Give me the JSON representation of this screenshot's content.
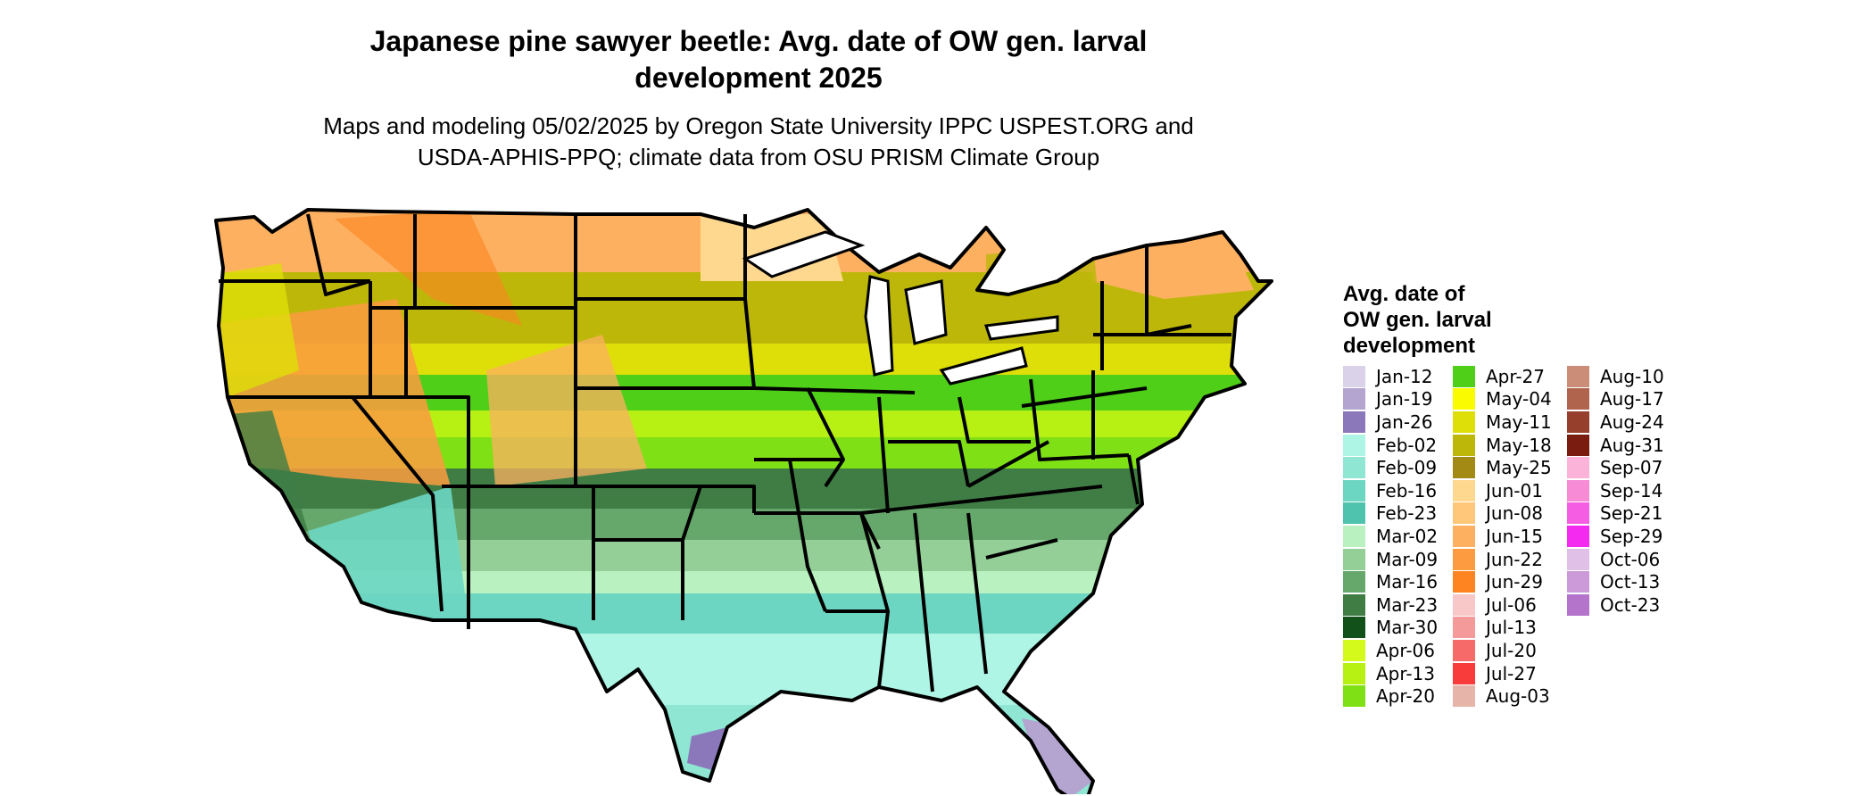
{
  "title": "Japanese pine sawyer beetle: Avg. date of OW gen. larval\ndevelopment 2025",
  "subtitle": "Maps and modeling 05/02/2025 by Oregon State University IPPC USPEST.ORG and\nUSDA-APHIS-PPQ; climate data from OSU PRISM Climate Group",
  "legend": {
    "title": "Avg. date of\nOW gen. larval\ndevelopment",
    "columns": [
      [
        {
          "label": "Jan-12",
          "color": "#d9d2e9"
        },
        {
          "label": "Jan-19",
          "color": "#b3a5d0"
        },
        {
          "label": "Jan-26",
          "color": "#8b78ba"
        },
        {
          "label": "Feb-02",
          "color": "#aef5e6"
        },
        {
          "label": "Feb-09",
          "color": "#8ee6d3"
        },
        {
          "label": "Feb-16",
          "color": "#6dd6c2"
        },
        {
          "label": "Feb-23",
          "color": "#4fc3ae"
        },
        {
          "label": "Mar-02",
          "color": "#b9f2c0"
        },
        {
          "label": "Mar-09",
          "color": "#93cf96"
        },
        {
          "label": "Mar-16",
          "color": "#66a86b"
        },
        {
          "label": "Mar-23",
          "color": "#3f7d45"
        },
        {
          "label": "Mar-30",
          "color": "#12511a"
        },
        {
          "label": "Apr-06",
          "color": "#d4fa1c"
        },
        {
          "label": "Apr-13",
          "color": "#b7f013"
        },
        {
          "label": "Apr-20",
          "color": "#7fe015"
        }
      ],
      [
        {
          "label": "Apr-27",
          "color": "#4fcf17"
        },
        {
          "label": "May-04",
          "color": "#fbfb00"
        },
        {
          "label": "May-11",
          "color": "#dede08"
        },
        {
          "label": "May-18",
          "color": "#bdb70a"
        },
        {
          "label": "May-25",
          "color": "#a28a14"
        },
        {
          "label": "Jun-01",
          "color": "#ffd890"
        },
        {
          "label": "Jun-08",
          "color": "#ffc77a"
        },
        {
          "label": "Jun-15",
          "color": "#fdb060"
        },
        {
          "label": "Jun-22",
          "color": "#fc9b3f"
        },
        {
          "label": "Jun-29",
          "color": "#fd8420"
        },
        {
          "label": "Jul-06",
          "color": "#f8c8c8"
        },
        {
          "label": "Jul-13",
          "color": "#f59a9a"
        },
        {
          "label": "Jul-20",
          "color": "#f66a6a"
        },
        {
          "label": "Jul-27",
          "color": "#f83c3c"
        },
        {
          "label": "Aug-03",
          "color": "#e6b4a8"
        }
      ],
      [
        {
          "label": "Aug-10",
          "color": "#cc8d78"
        },
        {
          "label": "Aug-17",
          "color": "#b0644e"
        },
        {
          "label": "Aug-24",
          "color": "#963f2d"
        },
        {
          "label": "Aug-31",
          "color": "#7a1d10"
        },
        {
          "label": "Sep-07",
          "color": "#fbb3d9"
        },
        {
          "label": "Sep-14",
          "color": "#f78bd5"
        },
        {
          "label": "Sep-21",
          "color": "#f55de2"
        },
        {
          "label": "Sep-29",
          "color": "#f52af0"
        },
        {
          "label": "Oct-06",
          "color": "#e0c0e6"
        },
        {
          "label": "Oct-13",
          "color": "#cc9ad8"
        },
        {
          "label": "Oct-23",
          "color": "#b574cb"
        }
      ]
    ]
  }
}
